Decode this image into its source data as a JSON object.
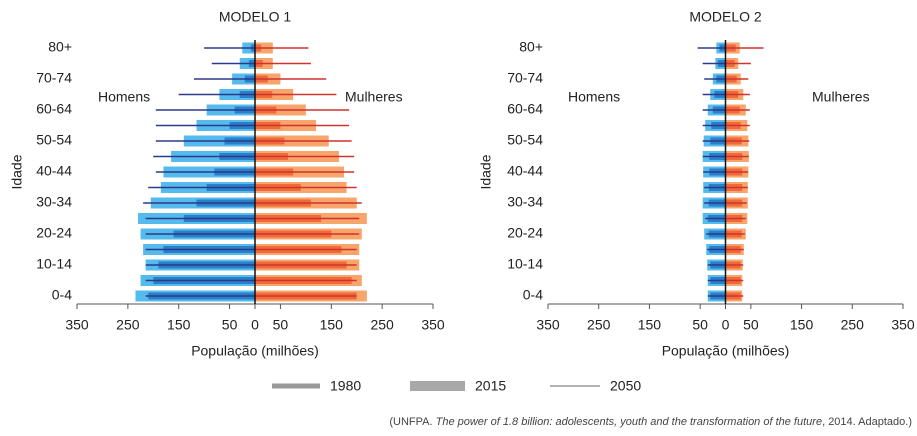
{
  "chart_data": [
    {
      "type": "pyramid",
      "title": "MODELO 1",
      "xlabel": "População (milhões)",
      "ylabel": "Idade",
      "annotations": [
        "Homens",
        "Mulheres"
      ],
      "categories": [
        "0-4",
        null,
        "10-14",
        null,
        "20-24",
        null,
        "30-34",
        null,
        "40-44",
        null,
        "50-54",
        null,
        "60-64",
        null,
        "70-74",
        null,
        "80+"
      ],
      "xlim": [
        -350,
        350
      ],
      "xticks": [
        {
          "value": -350,
          "label": "350"
        },
        {
          "value": -250,
          "label": "250"
        },
        {
          "value": -150,
          "label": "150"
        },
        {
          "value": -50,
          "label": "50"
        },
        0,
        50,
        150,
        250,
        350
      ],
      "series": [
        {
          "style": "medium",
          "men_color": "#2a7fc9",
          "women_color": "#ef6a3a",
          "men": [
            -210,
            -200,
            -190,
            -180,
            -160,
            -140,
            -115,
            -95,
            -80,
            -70,
            -60,
            -50,
            -40,
            -30,
            -20,
            -12,
            -8
          ],
          "women": [
            200,
            190,
            180,
            170,
            150,
            130,
            110,
            90,
            75,
            65,
            58,
            50,
            42,
            34,
            25,
            15,
            12
          ]
        },
        {
          "style": "thick",
          "men_color": "#55bbec",
          "women_color": "#f8a56c",
          "men": [
            -235,
            -225,
            -215,
            -220,
            -225,
            -230,
            -205,
            -185,
            -180,
            -165,
            -140,
            -115,
            -95,
            -70,
            -45,
            -30,
            -25
          ],
          "women": [
            220,
            210,
            205,
            205,
            210,
            220,
            200,
            180,
            175,
            165,
            145,
            120,
            100,
            75,
            50,
            35,
            35
          ]
        },
        {
          "style": "thin",
          "men_color": "#2b3a8c",
          "women_color": "#d2322d",
          "men": [
            -215,
            -215,
            -215,
            -215,
            -215,
            -215,
            -220,
            -210,
            -195,
            -200,
            -195,
            -195,
            -195,
            -150,
            -120,
            -85,
            -100
          ],
          "women": [
            200,
            200,
            200,
            200,
            205,
            205,
            210,
            200,
            195,
            195,
            190,
            185,
            185,
            160,
            140,
            110,
            105
          ]
        }
      ]
    },
    {
      "type": "pyramid",
      "title": "MODELO 2",
      "xlabel": "População (milhões)",
      "ylabel": "Idade",
      "annotations": [
        "Homens",
        "Mulheres"
      ],
      "categories": [
        "0-4",
        null,
        "10-14",
        null,
        "20-24",
        null,
        "30-34",
        null,
        "40-44",
        null,
        "50-54",
        null,
        "60-64",
        null,
        "70-74",
        null,
        "80+"
      ],
      "xlim": [
        -350,
        350
      ],
      "xticks": [
        {
          "value": -350,
          "label": "350"
        },
        {
          "value": -250,
          "label": "250"
        },
        {
          "value": -150,
          "label": "150"
        },
        {
          "value": -50,
          "label": "50"
        },
        0,
        50,
        150,
        250,
        350
      ],
      "series": [
        {
          "style": "medium",
          "men_color": "#2a7fc9",
          "women_color": "#ef6a3a",
          "men": [
            -30,
            -30,
            -30,
            -32,
            -33,
            -35,
            -33,
            -33,
            -32,
            -32,
            -30,
            -28,
            -25,
            -22,
            -18,
            -15,
            -12
          ],
          "women": [
            30,
            30,
            30,
            30,
            32,
            33,
            33,
            33,
            33,
            33,
            32,
            30,
            28,
            25,
            22,
            18,
            20
          ]
        },
        {
          "style": "thick",
          "men_color": "#55bbec",
          "women_color": "#f8a56c",
          "men": [
            -35,
            -35,
            -36,
            -38,
            -42,
            -45,
            -45,
            -44,
            -44,
            -45,
            -43,
            -40,
            -35,
            -30,
            -25,
            -20,
            -18
          ],
          "women": [
            33,
            33,
            34,
            36,
            40,
            43,
            44,
            44,
            45,
            46,
            45,
            43,
            40,
            35,
            30,
            25,
            28
          ]
        },
        {
          "style": "thin",
          "men_color": "#2b3a8c",
          "women_color": "#d2322d",
          "men": [
            -35,
            -35,
            -35,
            -36,
            -38,
            -40,
            -42,
            -42,
            -44,
            -45,
            -45,
            -45,
            -45,
            -45,
            -42,
            -45,
            -55
          ],
          "women": [
            35,
            35,
            35,
            36,
            38,
            40,
            42,
            44,
            45,
            46,
            47,
            48,
            48,
            48,
            45,
            50,
            75
          ]
        }
      ]
    }
  ],
  "legend": [
    {
      "name": "1980",
      "color": "#999999"
    },
    {
      "name": "2015",
      "color": "#a8a8a8"
    },
    {
      "name": "2050",
      "color": "#999999"
    }
  ],
  "source": {
    "prefix": "(UNFPA. ",
    "title": "The power of 1.8 billion: adolescents, youth and the transformation of the future",
    "suffix": ", 2014. Adaptado.)"
  }
}
